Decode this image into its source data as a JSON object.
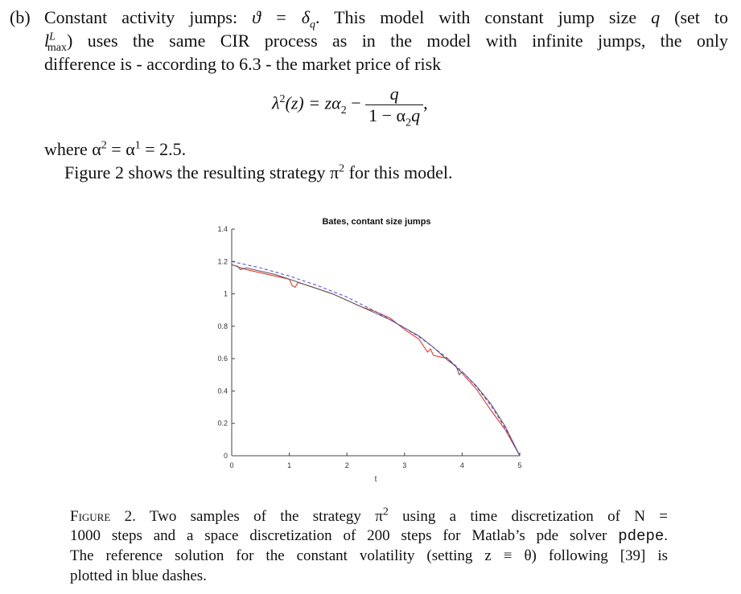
{
  "text": {
    "item_label": "(b)",
    "line1_a": "Constant activity jumps: ",
    "line1_math": "ϑ = δ",
    "line1_sub": "q",
    "line1_b": ". This model with constant jump size ",
    "line1_q": "q",
    "line1_c": " (set to",
    "line2_l": "l",
    "line2_sup": "L",
    "line2_sub": "max",
    "line2_rest": ") uses the same CIR process as in the model with infinite jumps, the only",
    "line3": "difference is - according to 6.3 - the market price of risk",
    "eq_lhs": "λ",
    "eq_lhs_sup": "2",
    "eq_lhs_arg": "(z) = zα",
    "eq_sub2": "2",
    "eq_minus": " − ",
    "eq_num": "q",
    "eq_den": "1 − α",
    "eq_den_sub": "2",
    "eq_den_q": "q",
    "eq_comma": ",",
    "where_a": "where α",
    "where_sup2": "2",
    "where_b": " = α",
    "where_sup1": "1",
    "where_c": " = 2.5.",
    "fig_a": "Figure 2 shows the resulting strategy π",
    "fig_sup": "2",
    "fig_b": " for this model."
  },
  "caption": {
    "label": "Figure 2.",
    "l1_a": "Two samples of the strategy π",
    "l1_sup": "2",
    "l1_b": " using a time discretization of N =",
    "l2_a": "1000 steps and a space discretization of 200 steps for Matlab’s pde solver ",
    "l2_code": "pdepe",
    "l2_b": ".",
    "l3": "The reference solution for the constant volatility (setting z ≡ θ) following [39] is",
    "l4": "plotted in blue dashes."
  },
  "chart_data": {
    "type": "line",
    "title": "Bates, contant size jumps",
    "xlabel": "t",
    "ylabel": "",
    "xlim": [
      0,
      5
    ],
    "ylim": [
      0,
      1.4
    ],
    "xticks": [
      "0",
      "1",
      "2",
      "3",
      "4",
      "5"
    ],
    "yticks": [
      "0",
      "0.2",
      "0.4",
      "0.6",
      "0.8",
      "1",
      "1.2",
      "1.4"
    ],
    "grid": false,
    "series": [
      {
        "color": "#ee2222",
        "style": "solid",
        "x": [
          0,
          0.25,
          0.5,
          0.75,
          1,
          1.05,
          1.1,
          1.15,
          1.25,
          1.5,
          1.75,
          2,
          2.25,
          2.5,
          2.75,
          3,
          3.25,
          3.4,
          3.45,
          3.5,
          3.75,
          4,
          4.25,
          4.5,
          4.75,
          5
        ],
        "y": [
          1.18,
          1.15,
          1.13,
          1.11,
          1.09,
          1.05,
          1.04,
          1.07,
          1.06,
          1.03,
          1.0,
          0.96,
          0.92,
          0.89,
          0.85,
          0.78,
          0.72,
          0.64,
          0.66,
          0.62,
          0.6,
          0.51,
          0.41,
          0.28,
          0.16,
          0
        ]
      },
      {
        "color": "#555555",
        "style": "solid",
        "x": [
          0,
          0.1,
          0.15,
          0.25,
          0.5,
          0.75,
          1,
          1.25,
          1.5,
          1.75,
          2,
          2.25,
          2.5,
          2.75,
          3,
          3.25,
          3.5,
          3.75,
          3.9,
          3.95,
          4,
          4.25,
          4.5,
          4.75,
          5
        ],
        "y": [
          1.18,
          1.17,
          1.15,
          1.16,
          1.14,
          1.12,
          1.09,
          1.06,
          1.03,
          1.0,
          0.96,
          0.92,
          0.88,
          0.84,
          0.79,
          0.74,
          0.67,
          0.59,
          0.55,
          0.5,
          0.52,
          0.43,
          0.32,
          0.18,
          0
        ]
      },
      {
        "color": "#4444ee",
        "style": "dashed",
        "x": [
          0,
          0.25,
          0.5,
          0.75,
          1,
          1.25,
          1.5,
          1.75,
          2,
          2.25,
          2.5,
          2.75,
          3,
          3.25,
          3.5,
          3.75,
          4,
          4.25,
          4.5,
          4.75,
          5
        ],
        "y": [
          1.2,
          1.18,
          1.16,
          1.135,
          1.11,
          1.08,
          1.05,
          1.015,
          0.98,
          0.935,
          0.89,
          0.84,
          0.79,
          0.735,
          0.67,
          0.6,
          0.52,
          0.425,
          0.31,
          0.17,
          0
        ]
      }
    ]
  }
}
